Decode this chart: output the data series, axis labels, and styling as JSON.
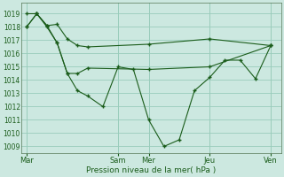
{
  "background_color": "#cce8e0",
  "grid_color": "#99ccbb",
  "line_color": "#1a5c1a",
  "marker_color": "#1a5c1a",
  "xlabel": "Pression niveau de la mer( hPa )",
  "ylim": [
    1008.5,
    1019.8
  ],
  "yticks": [
    1009,
    1010,
    1011,
    1012,
    1013,
    1014,
    1015,
    1016,
    1017,
    1018,
    1019
  ],
  "xtick_labels": [
    "Mar",
    "Sam",
    "Mer",
    "Jeu",
    "Ven"
  ],
  "xtick_positions": [
    0,
    36,
    48,
    72,
    96
  ],
  "xlim": [
    -2,
    100
  ],
  "vline_positions": [
    0,
    36,
    48,
    72,
    96
  ],
  "series1_x": [
    0,
    4,
    8,
    12,
    16,
    20,
    24,
    48,
    72,
    96
  ],
  "series1_y": [
    1019.0,
    1019.0,
    1018.1,
    1018.2,
    1017.1,
    1016.6,
    1016.5,
    1016.7,
    1017.1,
    1016.6
  ],
  "series2_x": [
    0,
    4,
    8,
    12,
    16,
    20,
    24,
    48,
    72,
    96
  ],
  "series2_y": [
    1018.0,
    1019.0,
    1018.1,
    1016.8,
    1014.5,
    1014.5,
    1014.9,
    1014.8,
    1015.0,
    1016.6
  ],
  "series3_x": [
    0,
    4,
    8,
    12,
    16,
    20,
    24,
    30,
    36,
    42,
    48,
    54,
    60,
    66,
    72,
    78,
    84,
    90,
    96
  ],
  "series3_y": [
    1018.0,
    1019.0,
    1018.0,
    1016.8,
    1014.5,
    1013.2,
    1012.8,
    1012.0,
    1015.0,
    1014.8,
    1011.0,
    1009.0,
    1009.5,
    1013.2,
    1014.2,
    1015.5,
    1015.5,
    1014.1,
    1016.6
  ]
}
